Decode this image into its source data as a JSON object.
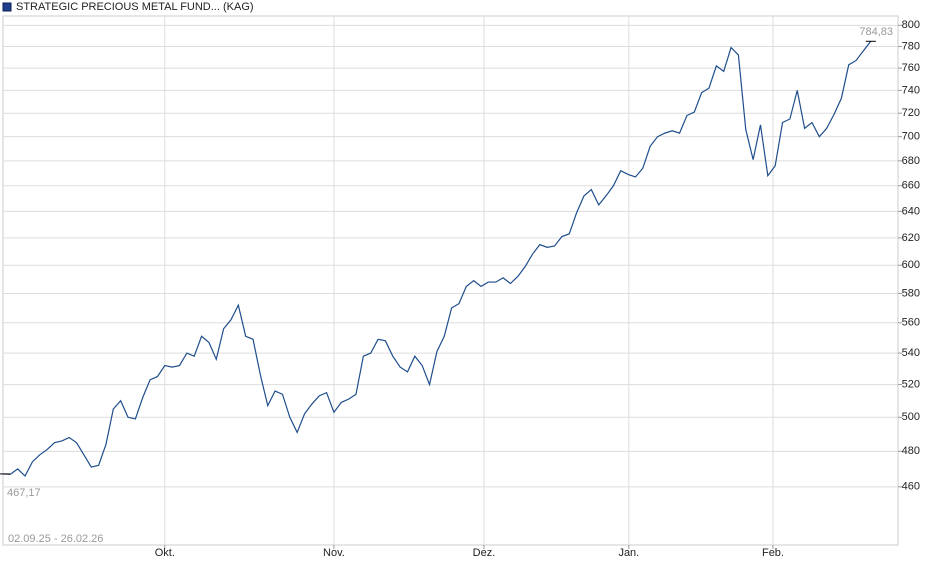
{
  "chart_data": {
    "type": "line",
    "title": "STRATEGIC PRECIOUS METAL FUND... (KAG)",
    "date_range": "02.09.25 - 26.02.26",
    "start_label": {
      "value": 467.17,
      "label": "467,17"
    },
    "end_label": {
      "value": 784.83,
      "label": "784,83"
    },
    "log_scale": true,
    "grid": true,
    "xlim": [
      0,
      121.7
    ],
    "xticks": [
      {
        "value": 22,
        "label": "Okt."
      },
      {
        "value": 45,
        "label": "Nov."
      },
      {
        "value": 65.4,
        "label": "Dez."
      },
      {
        "value": 85.1,
        "label": "Jan."
      },
      {
        "value": 104.7,
        "label": "Feb."
      }
    ],
    "ylim": [
      429,
      809
    ],
    "yticks": [
      460,
      480,
      500,
      520,
      540,
      560,
      580,
      600,
      620,
      640,
      660,
      680,
      700,
      720,
      740,
      760,
      780,
      800
    ],
    "series": [
      {
        "color": "#1f4e8c",
        "values": [
          467.17,
          467,
          470,
          466,
          474,
          478,
          481,
          485,
          486,
          488,
          485,
          478,
          471,
          472,
          484,
          505,
          510,
          500,
          499,
          512,
          523,
          525,
          532,
          531,
          532,
          540,
          538,
          551,
          547,
          536,
          556,
          562,
          572,
          551,
          549,
          526,
          507,
          516,
          514,
          500,
          491,
          502,
          508,
          513,
          515,
          503,
          509,
          511,
          514,
          538,
          540,
          549,
          548,
          538,
          531,
          528,
          538,
          532,
          520,
          541,
          551,
          570,
          573,
          585,
          589,
          585,
          588,
          588,
          591,
          587,
          592,
          599,
          608,
          615,
          613,
          614,
          621,
          623,
          639,
          652,
          657,
          645,
          652,
          660,
          672,
          669,
          667,
          674,
          692,
          700,
          703,
          705,
          703,
          718,
          721,
          738,
          742,
          762,
          757,
          779,
          772,
          706,
          681,
          710,
          668,
          676,
          712,
          715,
          740,
          707,
          712,
          700,
          707,
          719,
          733,
          763,
          767,
          776,
          784.83
        ]
      }
    ]
  }
}
